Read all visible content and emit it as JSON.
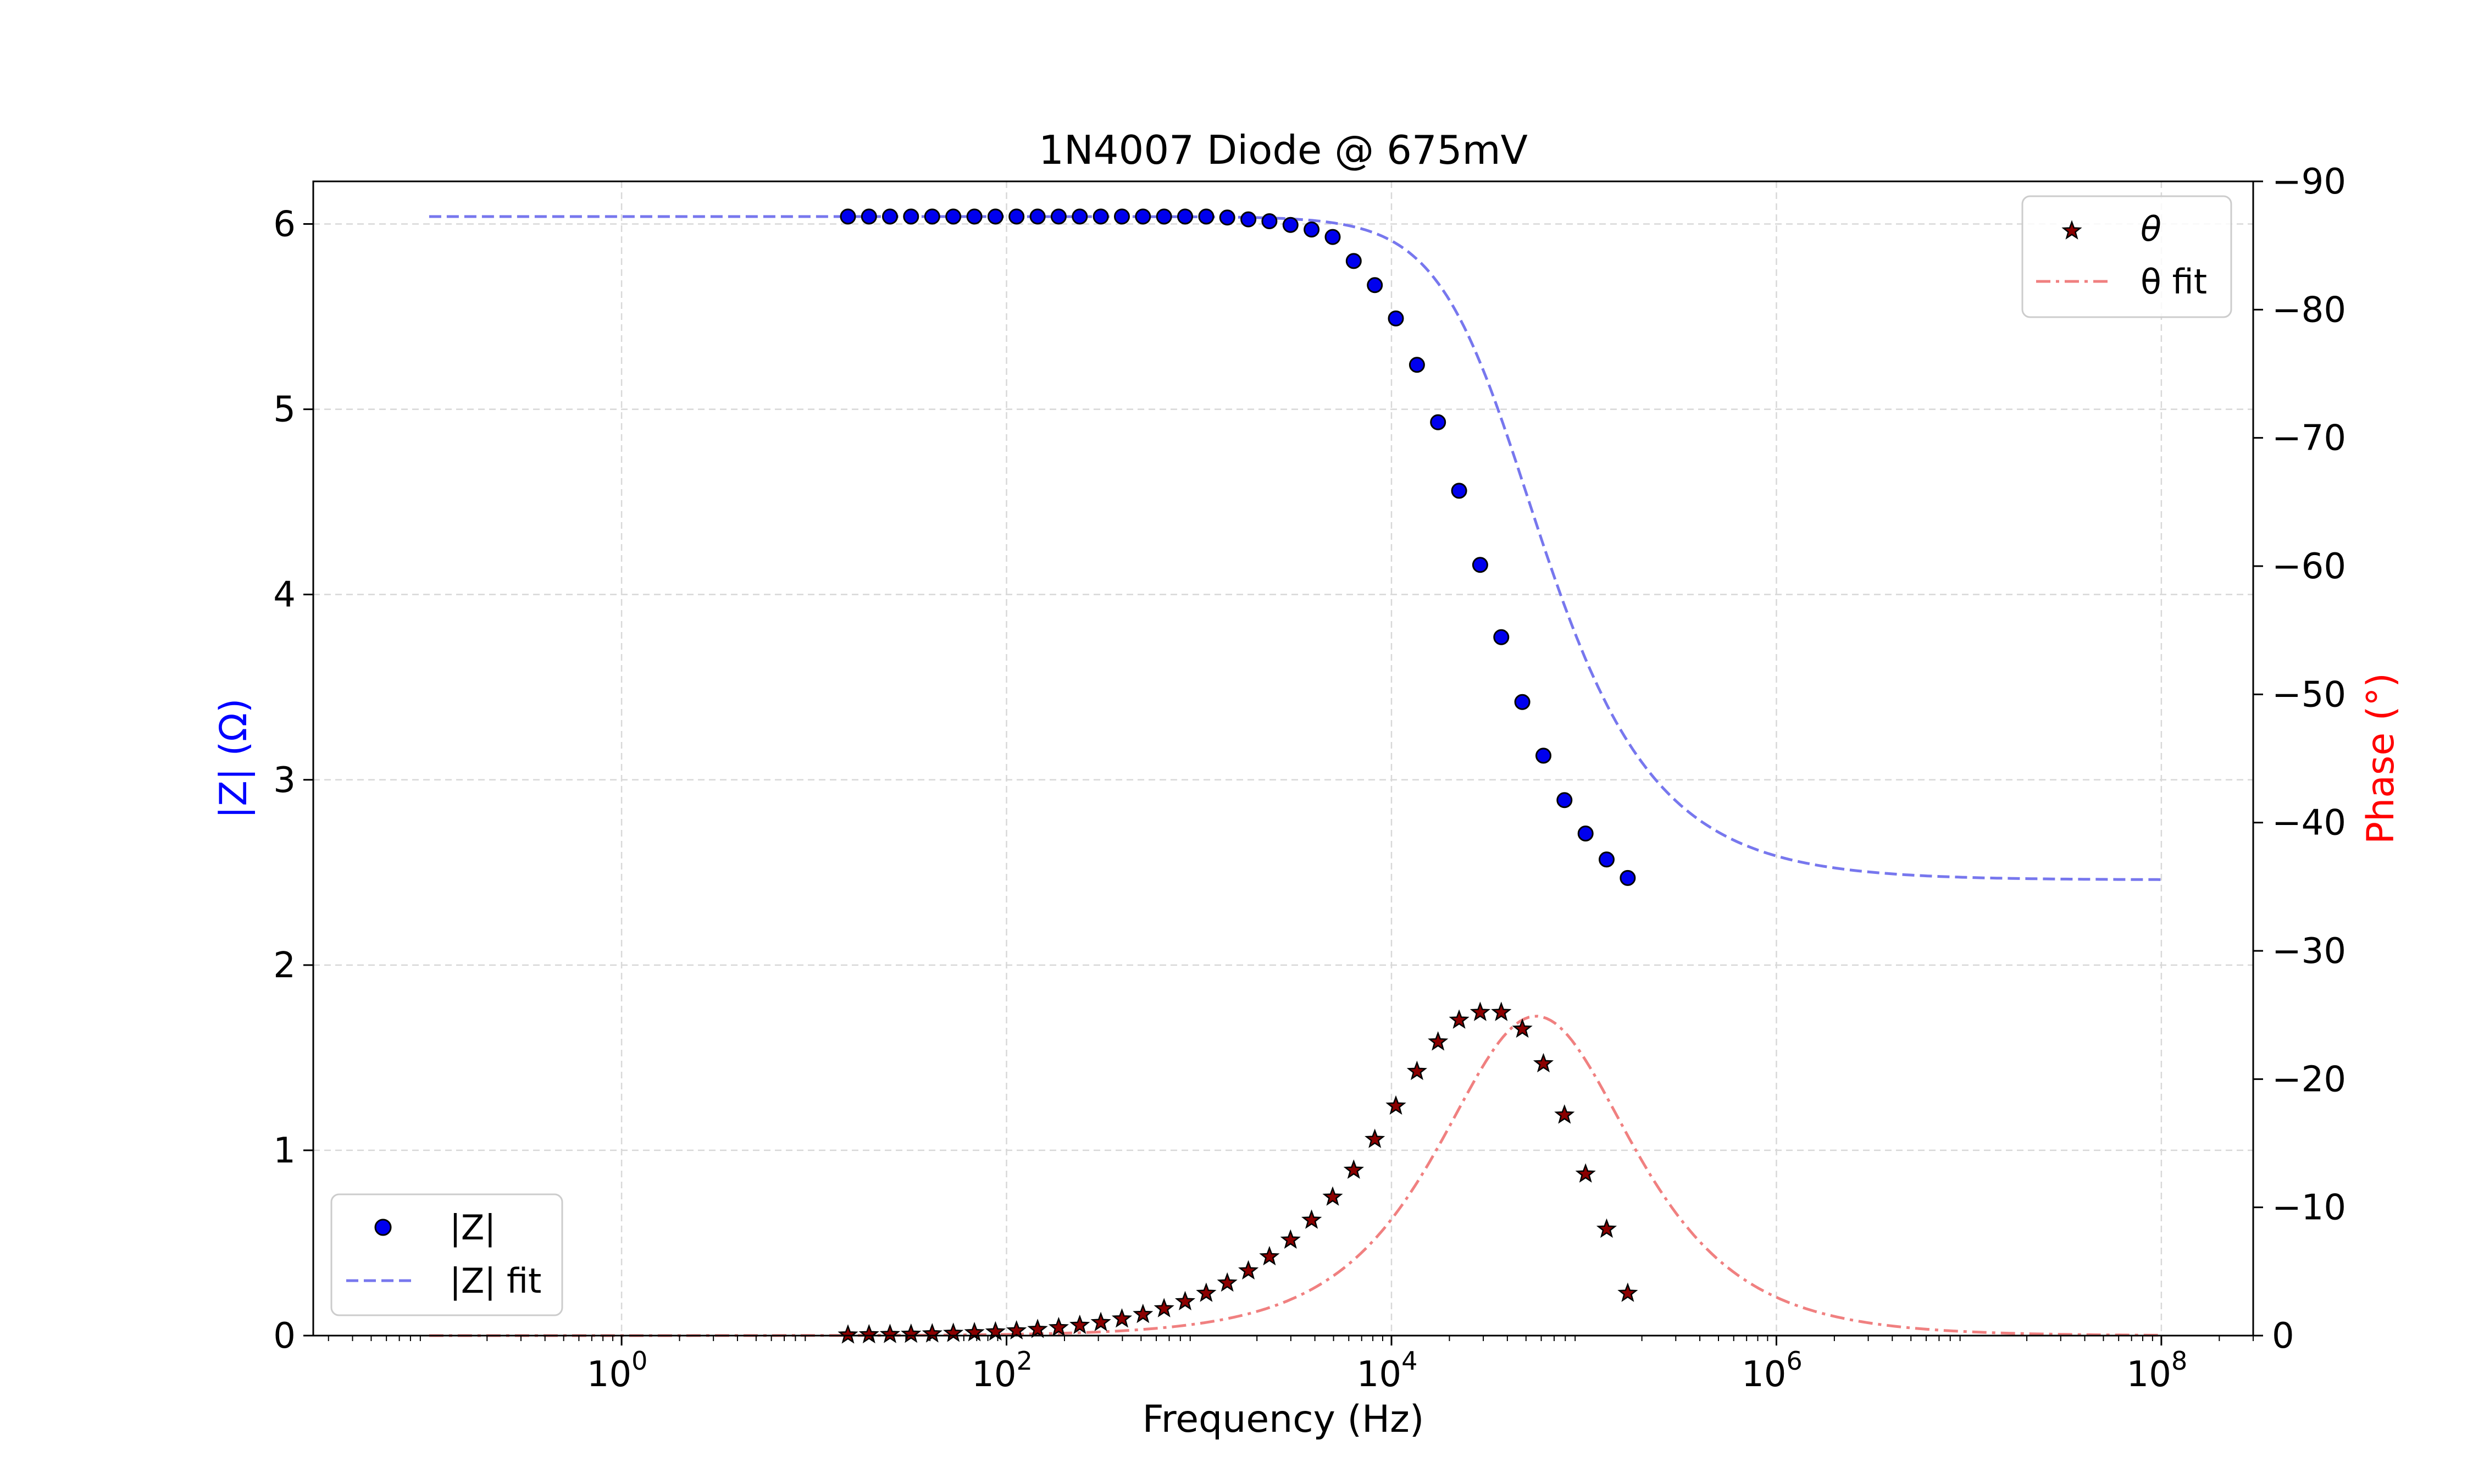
{
  "chart_data": {
    "type": "scatter",
    "title": "1N4007 Diode @ 675mV",
    "xlabel": "Frequency (Hz)",
    "ylabel_left": "|Z| (Ω)",
    "ylabel_right": "Phase (°)",
    "xscale": "log",
    "xlim": [
      0.025,
      300000000
    ],
    "ylim_left": [
      0,
      6.23
    ],
    "ylim_right": [
      0,
      -90
    ],
    "grid": true,
    "colors": {
      "z_markers": "#0000ee",
      "z_fit": "#7777ee",
      "theta_markers": "#8b0000",
      "theta_fit": "#f08080",
      "left_axis_label": "#0000ff",
      "right_axis_label": "#ff0000"
    },
    "x_ticks": [
      {
        "base": "10",
        "exp": "0",
        "value": 1
      },
      {
        "base": "10",
        "exp": "2",
        "value": 100
      },
      {
        "base": "10",
        "exp": "4",
        "value": 10000
      },
      {
        "base": "10",
        "exp": "6",
        "value": 1000000
      },
      {
        "base": "10",
        "exp": "8",
        "value": 100000000
      }
    ],
    "y_left_ticks": [
      "0",
      "1",
      "2",
      "3",
      "4",
      "5",
      "6"
    ],
    "y_right_ticks": [
      "0",
      "−10",
      "−20",
      "−30",
      "−40",
      "−50",
      "−60",
      "−70",
      "−80",
      "−90"
    ],
    "legend_left": {
      "placement": "lower-left",
      "entries": [
        {
          "label": "|Z|",
          "style": "markers-circle"
        },
        {
          "label": "|Z| fit",
          "style": "dashed-line"
        }
      ]
    },
    "legend_right": {
      "placement": "upper-right",
      "entries": [
        {
          "label": "θ",
          "style": "markers-star"
        },
        {
          "label": "θ fit",
          "style": "dashdot-line"
        }
      ]
    },
    "model": {
      "z_low": 6.04,
      "z_high": 2.46,
      "corner_frequency_hz": 36000
    },
    "fit_range_hz": [
      0.1,
      100000000
    ],
    "series": [
      {
        "name": "|Z|",
        "axis": "left",
        "x": [
          15,
          19.3,
          24.8,
          31.9,
          41.1,
          52.9,
          68.1,
          87.6,
          112.7,
          145,
          186.6,
          240.1,
          309,
          397.6,
          511.6,
          658.3,
          847.1,
          1090,
          1402.6,
          1804.9,
          2322.5,
          2988.5,
          3845.6,
          4948.4,
          6367.5,
          8193.5,
          10543.1,
          13566.4,
          17456.6,
          22462.6,
          28904.1,
          37192.8,
          47858.5,
          61582.8,
          79242.8,
          101967,
          131207,
          168833
        ],
        "y": [
          6.04,
          6.04,
          6.04,
          6.04,
          6.04,
          6.04,
          6.04,
          6.04,
          6.04,
          6.04,
          6.04,
          6.04,
          6.04,
          6.04,
          6.04,
          6.04,
          6.04,
          6.04,
          6.035,
          6.025,
          6.015,
          5.995,
          5.97,
          5.93,
          5.8,
          5.67,
          5.49,
          5.24,
          4.93,
          4.56,
          4.16,
          3.77,
          3.42,
          3.13,
          2.89,
          2.71,
          2.57,
          2.47
        ]
      },
      {
        "name": "θ",
        "axis": "right",
        "x": [
          15,
          19.3,
          24.8,
          31.9,
          41.1,
          52.9,
          68.1,
          87.6,
          112.7,
          145,
          186.6,
          240.1,
          309,
          397.6,
          511.6,
          658.3,
          847.1,
          1090,
          1402.6,
          1804.9,
          2322.5,
          2988.5,
          3845.6,
          4948.4,
          6367.5,
          8193.5,
          10543.1,
          13566.4,
          17456.6,
          22462.6,
          28904.1,
          37192.8,
          47858.5,
          61582.8,
          79242.8,
          101967,
          131207,
          168833
        ],
        "y": [
          -0.05,
          -0.07,
          -0.09,
          -0.11,
          -0.14,
          -0.18,
          -0.23,
          -0.29,
          -0.37,
          -0.48,
          -0.62,
          -0.8,
          -1.02,
          -1.3,
          -1.65,
          -2.1,
          -2.65,
          -3.3,
          -4.1,
          -5.05,
          -6.15,
          -7.45,
          -9.0,
          -10.8,
          -12.9,
          -15.3,
          -17.9,
          -20.6,
          -22.9,
          -24.6,
          -25.2,
          -25.2,
          -23.9,
          -21.2,
          -17.2,
          -12.6,
          -8.3,
          -3.3
        ]
      }
    ]
  }
}
